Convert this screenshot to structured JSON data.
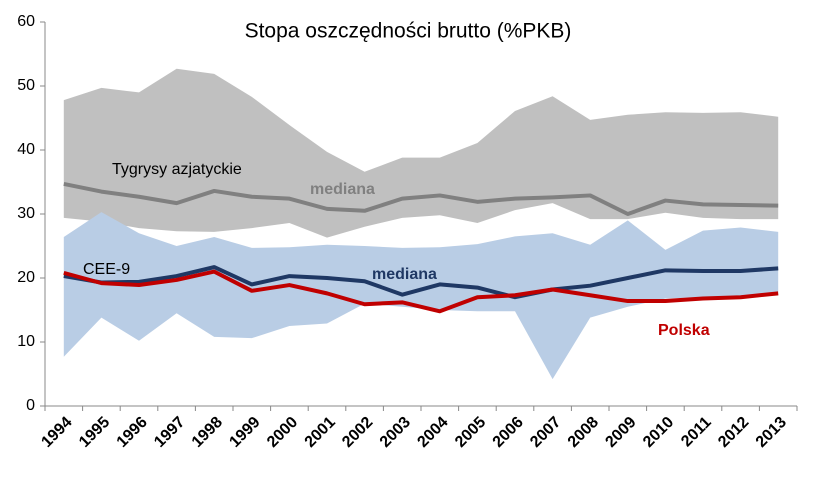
{
  "chart_data": {
    "type": "line",
    "title": "Stopa oszczędności brutto (%PKB)",
    "categories": [
      "1994",
      "1995",
      "1996",
      "1997",
      "1998",
      "1999",
      "2000",
      "2001",
      "2002",
      "2003",
      "2004",
      "2005",
      "2006",
      "2007",
      "2008",
      "2009",
      "2010",
      "2011",
      "2012",
      "2013"
    ],
    "ylim": [
      0,
      60
    ],
    "yticks": [
      0,
      10,
      20,
      30,
      40,
      50,
      60
    ],
    "bands": [
      {
        "color": "#c0c0c0",
        "upper": [
          47.8,
          49.7,
          49,
          52.7,
          51.9,
          48.3,
          43.9,
          39.7,
          36.6,
          38.8,
          38.8,
          41.1,
          46.1,
          48.4,
          44.7,
          45.5,
          45.9,
          45.8,
          45.9,
          45.2
        ],
        "lower": [
          29.4,
          28.8,
          27.8,
          27.3,
          27.2,
          27.8,
          28.6,
          26.3,
          28,
          29.4,
          29.8,
          28.6,
          30.6,
          31.7,
          29.2,
          29.2,
          30.2,
          29.4,
          29.2,
          29.2
        ]
      },
      {
        "color": "#b9cde5",
        "upper": [
          26.4,
          30.3,
          27,
          25,
          26.4,
          24.7,
          24.8,
          25.2,
          25,
          24.7,
          24.8,
          25.3,
          26.5,
          27,
          25.2,
          29,
          24.4,
          27.4,
          27.9,
          27.2
        ],
        "lower": [
          7.7,
          13.8,
          10.2,
          14.5,
          10.8,
          10.6,
          12.5,
          12.9,
          16,
          15.5,
          15,
          14.8,
          14.8,
          4.2,
          13.8,
          15.5,
          16.8,
          17,
          17.2,
          17.8
        ]
      }
    ],
    "series": [
      {
        "name": "Tygrysy azjatyckie",
        "color": "#808080",
        "values": [
          34.7,
          33.5,
          32.7,
          31.7,
          33.6,
          32.7,
          32.4,
          30.8,
          30.5,
          32.4,
          32.9,
          31.9,
          32.4,
          32.6,
          32.9,
          30,
          32.1,
          31.5,
          31.4,
          31.3
        ]
      },
      {
        "name": "CEE-9",
        "color": "#1f3864",
        "values": [
          20.3,
          19.3,
          19.4,
          20.3,
          21.7,
          19,
          20.3,
          20,
          19.5,
          17.4,
          19,
          18.5,
          17,
          18.2,
          18.8,
          20,
          21.2,
          21.1,
          21.1,
          21.5
        ]
      },
      {
        "name": "Polska",
        "color": "#c00000",
        "values": [
          20.8,
          19.2,
          18.9,
          19.7,
          21,
          18,
          18.9,
          17.6,
          15.9,
          16.2,
          14.8,
          17,
          17.3,
          18.2,
          17.3,
          16.4,
          16.4,
          16.8,
          17,
          17.6
        ]
      }
    ],
    "annotations": [
      {
        "text": "mediana",
        "color": "#808080"
      },
      {
        "text": "mediana",
        "color": "#1f3864"
      }
    ]
  }
}
